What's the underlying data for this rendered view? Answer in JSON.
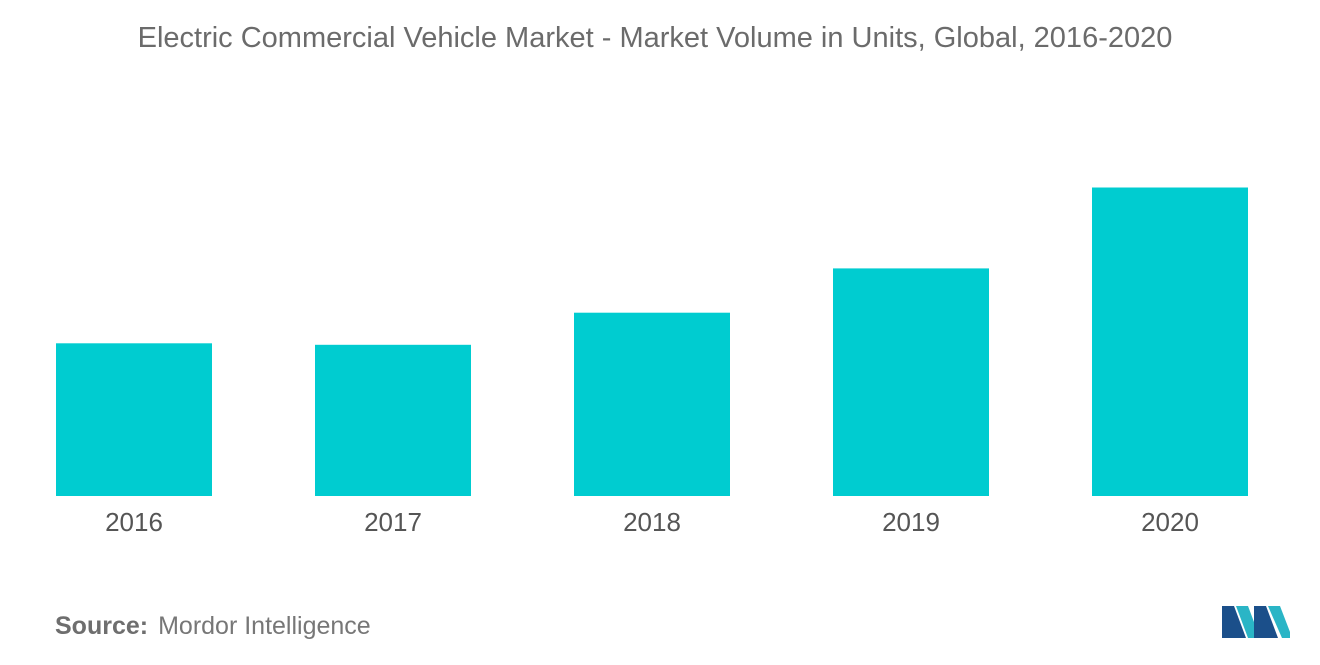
{
  "chart_data": {
    "type": "bar",
    "title": "Electric Commercial Vehicle Market - Market Volume in Units, Global, 2016-2020",
    "categories": [
      "2016",
      "2017",
      "2018",
      "2019",
      "2020"
    ],
    "values": [
      50,
      49.5,
      60,
      74.5,
      101
    ],
    "ylim": [
      0,
      110
    ],
    "xlabel": "",
    "ylabel": "",
    "grid": false,
    "legend": "none",
    "bar_color": "#00ccd0"
  },
  "footer": {
    "source_label": "Source:",
    "source_value": "Mordor Intelligence"
  },
  "logo": {
    "icon": "mordor-intelligence-logo-icon",
    "colors": [
      "#1b4f8a",
      "#2ab5c6"
    ]
  }
}
